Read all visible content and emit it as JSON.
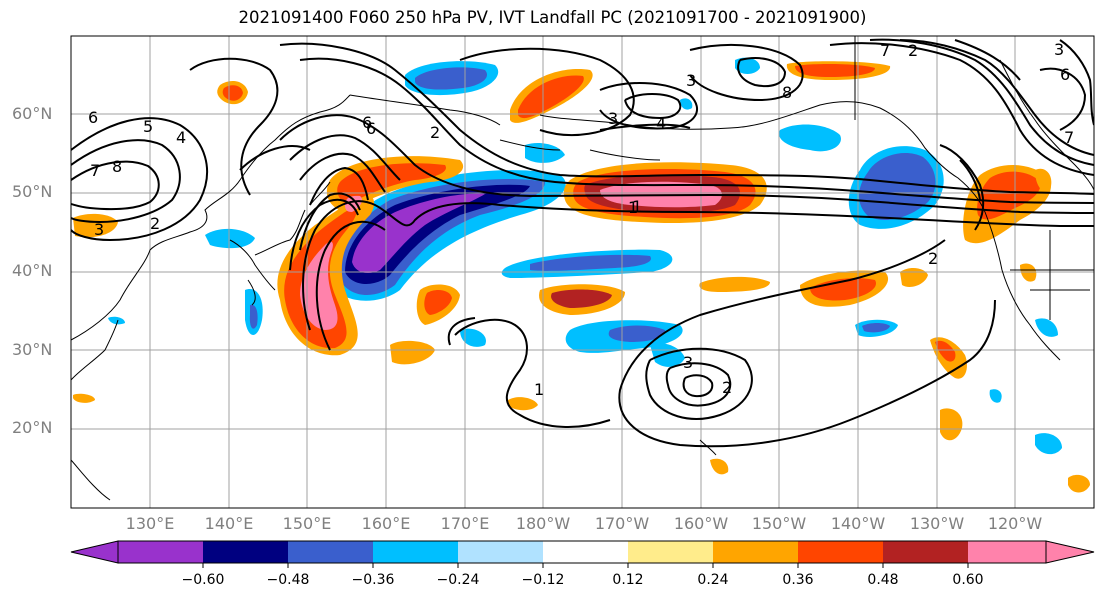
{
  "title": "2021091400 F060 250 hPa PV, IVT Landfall PC (2021091700 - 2021091900)",
  "map": {
    "projection": "PlateCarree",
    "extent": {
      "lon_min": 120,
      "lon_max": 250,
      "lat_min": 10,
      "lat_max": 70
    },
    "lat_labels": [
      "60°N",
      "50°N",
      "40°N",
      "30°N",
      "20°N"
    ],
    "lon_labels": [
      "130°E",
      "140°E",
      "150°E",
      "160°E",
      "170°E",
      "180°W",
      "170°W",
      "160°W",
      "150°W",
      "140°W",
      "130°W",
      "120°W"
    ],
    "gridlines": true,
    "contour_labels": [
      "6",
      "5",
      "4",
      "3",
      "2",
      "1",
      "8",
      "7",
      "6",
      "3",
      "1",
      "4",
      "2",
      "7",
      "6",
      "3",
      "2",
      "1",
      "2",
      "3",
      "6",
      "7",
      "8",
      "3",
      "2"
    ]
  },
  "colorbar": {
    "ticks": [
      "−0.60",
      "−0.48",
      "−0.36",
      "−0.24",
      "−0.12",
      "0.12",
      "0.24",
      "0.36",
      "0.48",
      "0.60"
    ],
    "colors": [
      "#9932cc",
      "#000080",
      "#3a5fcd",
      "#00bfff",
      "#b0e2ff",
      "#ffffff",
      "#ffec8b",
      "#ffa500",
      "#ff4500",
      "#b22222",
      "#ff82ab"
    ],
    "extend": "both"
  }
}
